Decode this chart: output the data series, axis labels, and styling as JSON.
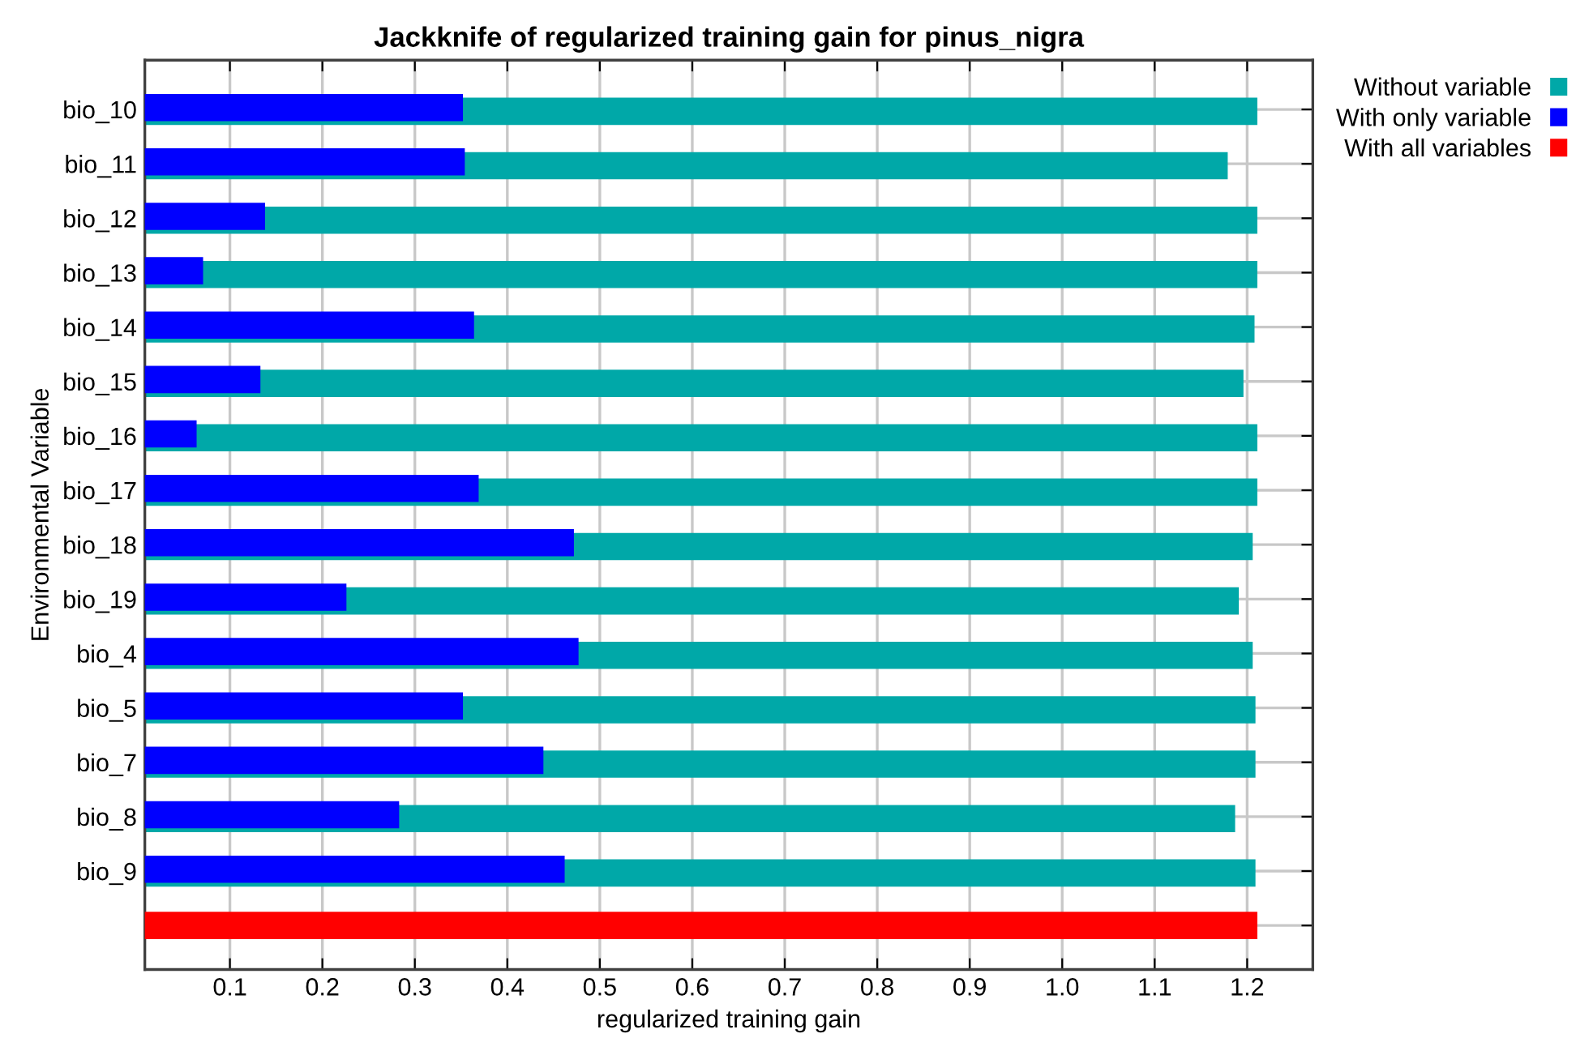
{
  "chart_data": {
    "type": "bar",
    "orientation": "horizontal",
    "title": "Jackknife of regularized training gain for pinus_nigra",
    "xlabel": "regularized training gain",
    "ylabel": "Environmental Variable",
    "categories": [
      "bio_10",
      "bio_11",
      "bio_12",
      "bio_13",
      "bio_14",
      "bio_15",
      "bio_16",
      "bio_17",
      "bio_18",
      "bio_19",
      "bio_4",
      "bio_5",
      "bio_7",
      "bio_8",
      "bio_9",
      null
    ],
    "series": [
      {
        "name": "Without variable",
        "color": "#00a8a8",
        "values": [
          1.211,
          1.179,
          1.211,
          1.211,
          1.208,
          1.196,
          1.211,
          1.211,
          1.206,
          1.191,
          1.206,
          1.209,
          1.209,
          1.187,
          1.209,
          null
        ]
      },
      {
        "name": "With only variable",
        "color": "#0000ff",
        "values": [
          0.352,
          0.354,
          0.138,
          0.071,
          0.364,
          0.133,
          0.064,
          0.369,
          0.472,
          0.226,
          0.477,
          0.352,
          0.439,
          0.283,
          0.462,
          null
        ]
      },
      {
        "name": "With all variables",
        "color": "#ff0000",
        "values": [
          null,
          null,
          null,
          null,
          null,
          null,
          null,
          null,
          null,
          null,
          null,
          null,
          null,
          null,
          null,
          1.211
        ]
      }
    ],
    "xlim": [
      0.008,
      1.271
    ],
    "xticks": [
      0.1,
      0.2,
      0.3,
      0.4,
      0.5,
      0.6,
      0.7,
      0.8,
      0.9,
      {
        "value": 1.0,
        "label": "1.0"
      },
      1.1,
      1.2
    ],
    "grid": true,
    "legend": "top right"
  }
}
